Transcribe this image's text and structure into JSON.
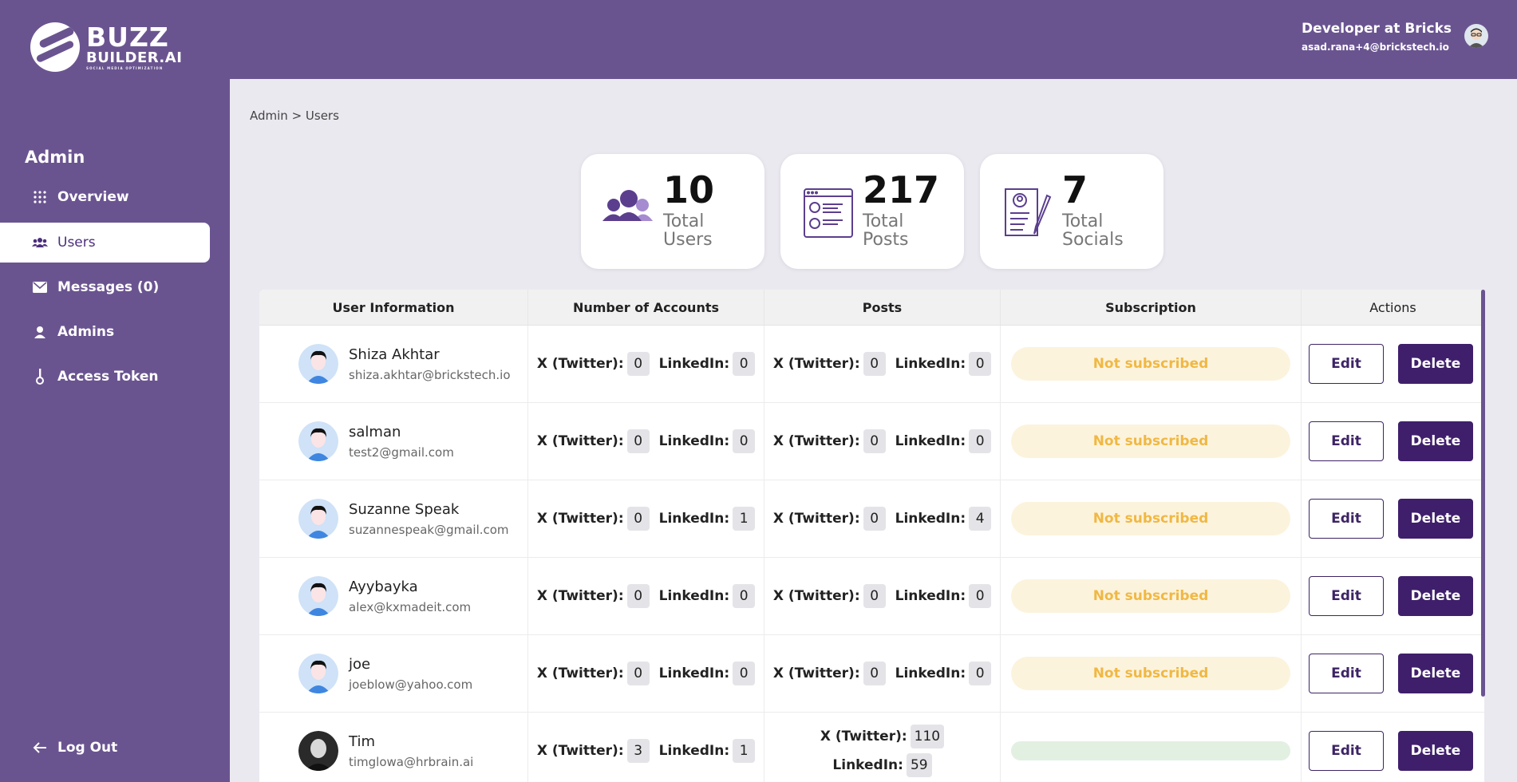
{
  "brand": {
    "line1": "BUZZ",
    "line2": "BUILDER.AI",
    "tagline": "SOCIAL MEDIA OPTIMIZATION"
  },
  "account": {
    "role": "Developer at Bricks",
    "email": "asad.rana+4@brickstech.io"
  },
  "sidebar": {
    "heading": "Admin",
    "items": [
      {
        "label": "Overview",
        "icon": "grid-icon"
      },
      {
        "label": "Users",
        "icon": "users-icon"
      },
      {
        "label": "Messages (0)",
        "icon": "mail-icon"
      },
      {
        "label": "Admins",
        "icon": "admin-icon"
      },
      {
        "label": "Access Token",
        "icon": "key-icon"
      }
    ],
    "logout": "Log Out"
  },
  "breadcrumb": "Admin > Users",
  "stats": [
    {
      "value": "10",
      "label": "Total Users",
      "icon": "users-group-icon"
    },
    {
      "value": "217",
      "label": "Total Posts",
      "icon": "posts-icon"
    },
    {
      "value": "7",
      "label": "Total Socials",
      "icon": "socials-icon"
    }
  ],
  "table": {
    "headers": [
      "User Information",
      "Number of Accounts",
      "Posts",
      "Subscription",
      "Actions"
    ],
    "x_label": "X (Twitter):",
    "li_label": "LinkedIn:",
    "edit_label": "Edit",
    "delete_label": "Delete",
    "rows": [
      {
        "name": "Shiza Akhtar",
        "email": "shiza.akhtar@brickstech.io",
        "acc_x": "0",
        "acc_li": "0",
        "post_x": "0",
        "post_li": "0",
        "subscription": "Not subscribed"
      },
      {
        "name": "salman",
        "email": "test2@gmail.com",
        "acc_x": "0",
        "acc_li": "0",
        "post_x": "0",
        "post_li": "0",
        "subscription": "Not subscribed"
      },
      {
        "name": "Suzanne Speak",
        "email": "suzannespeak@gmail.com",
        "acc_x": "0",
        "acc_li": "1",
        "post_x": "0",
        "post_li": "4",
        "subscription": "Not subscribed"
      },
      {
        "name": "Ayybayka",
        "email": "alex@kxmadeit.com",
        "acc_x": "0",
        "acc_li": "0",
        "post_x": "0",
        "post_li": "0",
        "subscription": "Not subscribed"
      },
      {
        "name": "joe",
        "email": "joeblow@yahoo.com",
        "acc_x": "0",
        "acc_li": "0",
        "post_x": "0",
        "post_li": "0",
        "subscription": "Not subscribed"
      },
      {
        "name": "Tim",
        "email": "timglowa@hrbrain.ai",
        "acc_x": "3",
        "acc_li": "1",
        "post_x": "110",
        "post_li": "59",
        "subscription": ""
      }
    ]
  },
  "colors": {
    "brand": "#6a5490",
    "button": "#3f1f6b",
    "badge_text": "#f0b843",
    "badge_bg": "#fcf3dd"
  }
}
